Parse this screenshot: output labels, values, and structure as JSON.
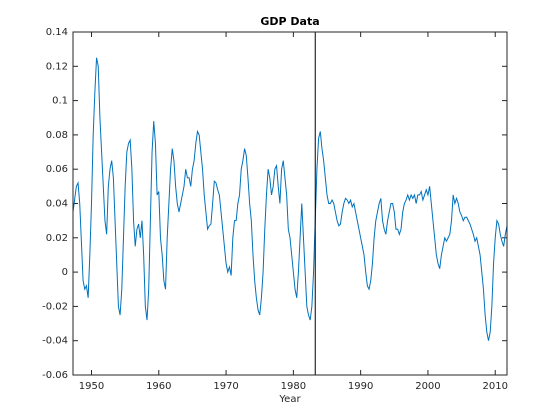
{
  "chart_data": {
    "type": "line",
    "title": "GDP Data",
    "xlabel": "Year",
    "xlim": [
      1947.25,
      2011.75
    ],
    "ylim": [
      -0.06,
      0.14
    ],
    "xticks": [
      1950,
      1960,
      1970,
      1980,
      1990,
      2000,
      2010
    ],
    "yticks": [
      -0.06,
      -0.04,
      -0.02,
      0,
      0.02,
      0.04,
      0.06,
      0.08,
      0.1,
      0.12,
      0.14
    ],
    "vline": 1983.25,
    "x": [
      1947.25,
      1947.75,
      1948,
      1948.25,
      1948.75,
      1949,
      1949.25,
      1949.5,
      1949.75,
      1950,
      1950.25,
      1950.5,
      1950.75,
      1951,
      1951.25,
      1951.5,
      1951.75,
      1952,
      1952.25,
      1952.5,
      1952.75,
      1953,
      1953.25,
      1953.5,
      1953.75,
      1954,
      1954.25,
      1954.5,
      1954.75,
      1955,
      1955.25,
      1955.5,
      1955.75,
      1956,
      1956.25,
      1956.5,
      1956.75,
      1957,
      1957.25,
      1957.5,
      1957.75,
      1958,
      1958.25,
      1958.5,
      1958.75,
      1959,
      1959.25,
      1959.5,
      1959.75,
      1960,
      1960.25,
      1960.5,
      1960.75,
      1961,
      1961.25,
      1961.5,
      1961.75,
      1962,
      1962.25,
      1962.5,
      1962.75,
      1963,
      1963.25,
      1963.5,
      1963.75,
      1964,
      1964.25,
      1964.5,
      1964.75,
      1965,
      1965.25,
      1965.5,
      1965.75,
      1966,
      1966.25,
      1966.5,
      1966.75,
      1967,
      1967.25,
      1967.5,
      1967.75,
      1968,
      1968.25,
      1968.5,
      1968.75,
      1969,
      1969.25,
      1969.5,
      1969.75,
      1970,
      1970.25,
      1970.5,
      1970.75,
      1971,
      1971.25,
      1971.5,
      1971.75,
      1972,
      1972.25,
      1972.5,
      1972.75,
      1973,
      1973.25,
      1973.5,
      1973.75,
      1974,
      1974.25,
      1974.5,
      1974.75,
      1975,
      1975.25,
      1975.5,
      1975.75,
      1976,
      1976.25,
      1976.5,
      1976.75,
      1977,
      1977.25,
      1977.5,
      1977.75,
      1978,
      1978.25,
      1978.5,
      1978.75,
      1979,
      1979.25,
      1979.5,
      1979.75,
      1980,
      1980.25,
      1980.5,
      1980.75,
      1981,
      1981.25,
      1981.5,
      1981.75,
      1982,
      1982.25,
      1982.5,
      1982.75,
      1983,
      1983.25,
      1983.5,
      1983.75,
      1984,
      1984.25,
      1984.5,
      1984.75,
      1985,
      1985.25,
      1985.5,
      1985.75,
      1986,
      1986.25,
      1986.5,
      1986.75,
      1987,
      1987.25,
      1987.5,
      1987.75,
      1988,
      1988.25,
      1988.5,
      1988.75,
      1989,
      1989.25,
      1989.5,
      1989.75,
      1990,
      1990.25,
      1990.5,
      1990.75,
      1991,
      1991.25,
      1991.5,
      1991.75,
      1992,
      1992.25,
      1992.5,
      1992.75,
      1993,
      1993.25,
      1993.5,
      1993.75,
      1994,
      1994.25,
      1994.5,
      1994.75,
      1995,
      1995.25,
      1995.5,
      1995.75,
      1996,
      1996.25,
      1996.5,
      1996.75,
      1997,
      1997.25,
      1997.5,
      1997.75,
      1998,
      1998.25,
      1998.5,
      1998.75,
      1999,
      1999.25,
      1999.5,
      1999.75,
      2000,
      2000.25,
      2000.5,
      2000.75,
      2001,
      2001.25,
      2001.5,
      2001.75,
      2002,
      2002.25,
      2002.5,
      2002.75,
      2003,
      2003.25,
      2003.5,
      2003.75,
      2004,
      2004.25,
      2004.5,
      2004.75,
      2005,
      2005.25,
      2005.5,
      2005.75,
      2006,
      2006.25,
      2006.5,
      2006.75,
      2007,
      2007.25,
      2007.5,
      2007.75,
      2008,
      2008.25,
      2008.5,
      2008.75,
      2009,
      2009.25,
      2009.5,
      2009.75,
      2010,
      2010.25,
      2010.5,
      2010.75,
      2011,
      2011.25,
      2011.5,
      2011.75
    ],
    "series": [
      {
        "name": "GDP",
        "color": "#0072bd",
        "values": [
          0.035,
          0.05,
          0.052,
          0.04,
          -0.005,
          -0.01,
          -0.008,
          -0.015,
          0.01,
          0.04,
          0.08,
          0.105,
          0.125,
          0.12,
          0.09,
          0.07,
          0.05,
          0.03,
          0.022,
          0.05,
          0.06,
          0.065,
          0.055,
          0.03,
          0.005,
          -0.02,
          -0.025,
          -0.01,
          0.02,
          0.05,
          0.07,
          0.075,
          0.077,
          0.06,
          0.03,
          0.015,
          0.025,
          0.028,
          0.02,
          0.03,
          0.01,
          -0.02,
          -0.028,
          -0.01,
          0.03,
          0.07,
          0.088,
          0.075,
          0.045,
          0.047,
          0.02,
          0.01,
          -0.005,
          -0.01,
          0.02,
          0.04,
          0.06,
          0.072,
          0.065,
          0.05,
          0.04,
          0.035,
          0.04,
          0.045,
          0.05,
          0.06,
          0.055,
          0.055,
          0.05,
          0.06,
          0.065,
          0.075,
          0.082,
          0.08,
          0.07,
          0.06,
          0.045,
          0.035,
          0.025,
          0.027,
          0.028,
          0.04,
          0.053,
          0.052,
          0.048,
          0.045,
          0.035,
          0.025,
          0.015,
          0.005,
          0,
          0.003,
          -0.002,
          0.02,
          0.03,
          0.03,
          0.04,
          0.045,
          0.06,
          0.065,
          0.072,
          0.068,
          0.055,
          0.04,
          0.03,
          0.01,
          -0.005,
          -0.015,
          -0.022,
          -0.025,
          -0.015,
          0,
          0.025,
          0.045,
          0.06,
          0.055,
          0.045,
          0.05,
          0.06,
          0.062,
          0.05,
          0.04,
          0.06,
          0.065,
          0.055,
          0.045,
          0.025,
          0.02,
          0.01,
          0,
          -0.01,
          -0.015,
          0,
          0.02,
          0.04,
          0.02,
          0,
          -0.02,
          -0.025,
          -0.028,
          -0.02,
          0,
          0.03,
          0.06,
          0.078,
          0.082,
          0.072,
          0.065,
          0.055,
          0.045,
          0.04,
          0.04,
          0.042,
          0.04,
          0.035,
          0.03,
          0.027,
          0.028,
          0.035,
          0.04,
          0.043,
          0.042,
          0.04,
          0.042,
          0.038,
          0.04,
          0.035,
          0.03,
          0.025,
          0.02,
          0.015,
          0.01,
          0,
          -0.008,
          -0.01,
          -0.005,
          0.005,
          0.02,
          0.03,
          0.035,
          0.04,
          0.043,
          0.03,
          0.025,
          0.022,
          0.03,
          0.035,
          0.04,
          0.04,
          0.035,
          0.025,
          0.025,
          0.022,
          0.025,
          0.035,
          0.04,
          0.042,
          0.045,
          0.042,
          0.045,
          0.043,
          0.045,
          0.04,
          0.045,
          0.045,
          0.047,
          0.042,
          0.045,
          0.048,
          0.045,
          0.05,
          0.04,
          0.03,
          0.02,
          0.01,
          0.005,
          0.002,
          0.01,
          0.015,
          0.02,
          0.018,
          0.02,
          0.022,
          0.03,
          0.045,
          0.04,
          0.043,
          0.04,
          0.035,
          0.033,
          0.03,
          0.032,
          0.032,
          0.03,
          0.028,
          0.025,
          0.022,
          0.018,
          0.02,
          0.015,
          0.01,
          0,
          -0.01,
          -0.025,
          -0.035,
          -0.04,
          -0.035,
          -0.02,
          0.005,
          0.02,
          0.03,
          0.028,
          0.022,
          0.018,
          0.015,
          0.022,
          0.027
        ]
      }
    ]
  }
}
